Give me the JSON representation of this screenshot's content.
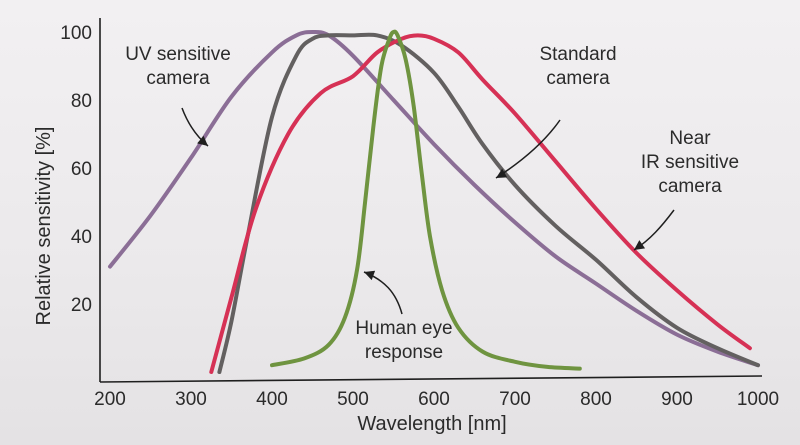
{
  "chart_data": {
    "type": "line",
    "title": "",
    "xlabel": "Wavelength [nm]",
    "ylabel": "Relative sensitivity [%]",
    "xlim": [
      200,
      1000
    ],
    "ylim": [
      0,
      100
    ],
    "x_ticks": [
      200,
      300,
      400,
      500,
      600,
      700,
      800,
      900,
      1000
    ],
    "y_ticks": [
      20,
      40,
      60,
      80,
      100
    ],
    "grid": false,
    "series": [
      {
        "name": "UV sensitive camera",
        "color": "#8b6e96",
        "x": [
          200,
          250,
          300,
          350,
          400,
          430,
          450,
          470,
          500,
          550,
          600,
          650,
          700,
          750,
          800,
          850,
          900,
          950,
          1000
        ],
        "y": [
          31,
          46,
          63,
          81,
          94,
          99,
          100,
          99,
          93,
          80,
          67,
          55,
          44,
          34,
          26,
          18,
          11,
          6,
          2
        ]
      },
      {
        "name": "Standard camera",
        "color": "#636060",
        "x": [
          335,
          350,
          370,
          400,
          430,
          450,
          470,
          500,
          530,
          560,
          600,
          630,
          660,
          700,
          750,
          800,
          850,
          900,
          950,
          1000
        ],
        "y": [
          0,
          15,
          40,
          75,
          93,
          98,
          99,
          99,
          99,
          96,
          88,
          78,
          67,
          55,
          43,
          33,
          22,
          13,
          7,
          2
        ]
      },
      {
        "name": "Near IR sensitive camera",
        "color": "#d63155",
        "x": [
          325,
          350,
          380,
          420,
          460,
          500,
          530,
          560,
          580,
          600,
          630,
          660,
          700,
          750,
          800,
          850,
          900,
          950,
          990
        ],
        "y": [
          0,
          22,
          48,
          70,
          82,
          87,
          94,
          98,
          99,
          98,
          94,
          86,
          76,
          62,
          48,
          35,
          24,
          14,
          7
        ]
      },
      {
        "name": "Human eye response",
        "color": "#6f9440",
        "x": [
          400,
          440,
          470,
          490,
          505,
          515,
          525,
          535,
          545,
          550,
          555,
          565,
          575,
          585,
          595,
          610,
          630,
          660,
          700,
          740,
          780
        ],
        "y": [
          2,
          4,
          8,
          16,
          30,
          50,
          72,
          90,
          98,
          100,
          99,
          92,
          78,
          58,
          40,
          24,
          13,
          6,
          3,
          1.5,
          1
        ]
      }
    ],
    "annotations": [
      {
        "lines": [
          "UV sensitive",
          "camera"
        ],
        "series": "UV sensitive camera"
      },
      {
        "lines": [
          "Standard",
          "camera"
        ],
        "series": "Standard camera"
      },
      {
        "lines": [
          "Near",
          "IR sensitive",
          "camera"
        ],
        "series": "Near IR sensitive camera"
      },
      {
        "lines": [
          "Human eye",
          "response"
        ],
        "series": "Human eye response"
      }
    ]
  }
}
